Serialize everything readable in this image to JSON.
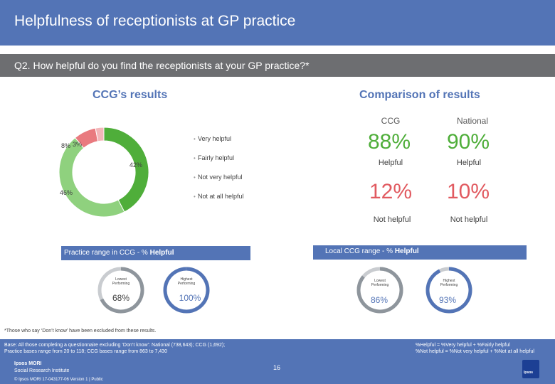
{
  "header": {
    "title": "Helpfulness of receptionists at GP practice"
  },
  "question": {
    "text": "Q2. How helpful do you find the receptionists at your GP practice?*"
  },
  "left_section": {
    "title": "CCG’s results"
  },
  "right_section": {
    "title": "Comparison of results"
  },
  "chart_data": [
    {
      "type": "pie",
      "subtype": "donut",
      "categories": [
        "Very helpful",
        "Fairly helpful",
        "Not very helpful",
        "Not at all helpful"
      ],
      "values": [
        42,
        46,
        8,
        3
      ],
      "data_labels": [
        "42%",
        "46%",
        "8%",
        "3%"
      ],
      "legend_position": "right",
      "colors": [
        "#4fae3a",
        "#8fd17e",
        "#e97a7f",
        "#f3b6b9"
      ]
    }
  ],
  "comparison": {
    "columns": [
      "CCG",
      "National"
    ],
    "helpful": {
      "ccg": "88%",
      "national": "90%",
      "label": "Helpful"
    },
    "not_helpful": {
      "ccg": "12%",
      "national": "10%",
      "label": "Not helpful"
    }
  },
  "practice_range": {
    "label_prefix": "Practice range in CCG - % ",
    "label_bold": "Helpful",
    "lowest_label": "Lowest Performing",
    "highest_label": "Highest Performing",
    "lowest_value": "68%",
    "highest_value": "100%",
    "lowest_fill": 0.68,
    "highest_fill": 1.0
  },
  "local_range": {
    "label_prefix": "Local CCG range - % ",
    "label_bold": "Helpful",
    "lowest_label": "Lowest Performing",
    "highest_label": "Highest Performing",
    "lowest_value": "86%",
    "highest_value": "93%",
    "lowest_fill": 0.86,
    "highest_fill": 0.93
  },
  "footnote": "*Those who say ‘Don’t know’ have been excluded from these results.",
  "footer": {
    "base_line1": "Base: All those completing a questionnaire excluding ‘Don’t know’: National (738,643); CCG (1,692);",
    "base_line2": "Practice bases range from 20 to 118; CCG bases range from 863 to 7,430",
    "def_line1": "%Helpful = %Very helpful + %Fairly helpful",
    "def_line2": "%Not helpful = %Not very helpful + %Not at all helpful",
    "page_number": "16",
    "logo_line1": "Ipsos MORI",
    "logo_line2": "Social Research Institute",
    "copyright": "© Ipsos MORI     17-043177-06 Version 1 | Public",
    "badge": "Ipsos"
  },
  "colors": {
    "accent": "#5374b6",
    "helpful": "#4fae3a",
    "not_helpful": "#e15a60",
    "ring_grey": "#9aa0a6"
  }
}
